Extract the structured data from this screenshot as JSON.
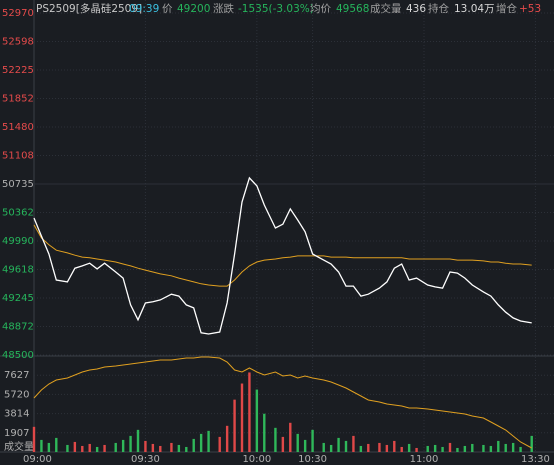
{
  "header": {
    "symbol": "PS2509[多晶硅2509]",
    "time": "09:39",
    "price_label": "价",
    "price": "49200",
    "change_label": "涨跌",
    "change": "-1535(-3.03%)",
    "avg_label": "均价",
    "avg": "49568",
    "vol_label": "成交量",
    "vol": "436",
    "oi_label": "持仓",
    "oi": "13.04万",
    "oi_chg_label": "增仓",
    "oi_chg": "+53"
  },
  "chart_data": {
    "type": "line",
    "x": [
      0,
      2,
      4,
      6,
      9,
      11,
      13,
      15,
      17,
      19,
      22,
      24,
      26,
      28,
      30,
      32,
      34,
      37,
      39,
      41,
      43,
      45,
      47,
      50,
      52,
      54,
      56,
      58,
      60,
      62,
      65,
      67,
      69,
      71,
      73,
      75,
      78,
      80,
      82,
      84,
      86,
      88,
      90,
      93,
      95,
      97,
      99,
      101,
      103,
      106,
      108,
      110,
      112,
      114,
      116,
      118,
      121,
      123,
      125,
      127,
      129,
      131,
      134
    ],
    "xlim": [
      0,
      140
    ],
    "xticks": [
      {
        "value": 0,
        "label": "09:00"
      },
      {
        "value": 30,
        "label": "09:30"
      },
      {
        "value": 60,
        "label": "10:00"
      },
      {
        "value": 75,
        "label": "10:30"
      },
      {
        "value": 105,
        "label": "11:00"
      },
      {
        "value": 135,
        "label": "13:30"
      }
    ],
    "ylim": [
      48500,
      52970
    ],
    "yticks": [
      48500,
      48872,
      49245,
      49618,
      49990,
      50362,
      50735,
      51108,
      51480,
      51852,
      52225,
      52598,
      52970
    ],
    "series": [
      {
        "color": "#ffffff",
        "values": [
          50290,
          50055,
          49820,
          49480,
          49455,
          49635,
          49665,
          49700,
          49625,
          49700,
          49585,
          49505,
          49155,
          48960,
          49180,
          49195,
          49220,
          49295,
          49270,
          49155,
          49115,
          48790,
          48775,
          48800,
          49180,
          49820,
          50500,
          50815,
          50710,
          50460,
          50160,
          50210,
          50410,
          50265,
          50110,
          49820,
          49740,
          49690,
          49585,
          49400,
          49400,
          49270,
          49295,
          49375,
          49455,
          49635,
          49690,
          49480,
          49505,
          49415,
          49390,
          49375,
          49585,
          49570,
          49505,
          49415,
          49325,
          49270,
          49155,
          49060,
          48985,
          48945,
          48920
        ]
      },
      {
        "color": "#e0a020",
        "values": [
          50200,
          50030,
          49940,
          49870,
          49835,
          49805,
          49780,
          49770,
          49755,
          49740,
          49715,
          49690,
          49665,
          49635,
          49610,
          49585,
          49560,
          49535,
          49505,
          49480,
          49455,
          49430,
          49415,
          49400,
          49400,
          49480,
          49585,
          49665,
          49715,
          49740,
          49755,
          49770,
          49780,
          49795,
          49795,
          49795,
          49795,
          49780,
          49780,
          49780,
          49770,
          49770,
          49770,
          49770,
          49770,
          49770,
          49770,
          49755,
          49755,
          49755,
          49755,
          49755,
          49755,
          49740,
          49740,
          49740,
          49730,
          49715,
          49715,
          49700,
          49690,
          49690,
          49675
        ]
      }
    ],
    "volume": {
      "label": "成交量",
      "ylim": [
        0,
        9534
      ],
      "yticks": [
        1907,
        3814,
        5720,
        7627
      ],
      "up_color": "#e04848",
      "down_color": "#2fb85a",
      "values": [
        2500,
        1200,
        900,
        1400,
        700,
        1000,
        600,
        800,
        500,
        700,
        900,
        1200,
        1600,
        2200,
        1100,
        800,
        600,
        900,
        700,
        500,
        1300,
        1800,
        2100,
        1500,
        2600,
        5200,
        6800,
        7900,
        6200,
        3800,
        2400,
        1500,
        2900,
        1800,
        1200,
        2200,
        900,
        700,
        1400,
        1100,
        1600,
        600,
        800,
        900,
        700,
        1100,
        500,
        800,
        400,
        600,
        700,
        500,
        900,
        400,
        600,
        800,
        700,
        600,
        1100,
        800,
        900,
        500,
        1600
      ]
    },
    "open_interest": {
      "color": "#e0a020",
      "ylim": [
        130000,
        132400
      ],
      "values": [
        131350,
        131550,
        131700,
        131800,
        131850,
        131925,
        132000,
        132050,
        132075,
        132125,
        132150,
        132175,
        132200,
        132225,
        132250,
        132275,
        132300,
        132300,
        132325,
        132350,
        132350,
        132375,
        132375,
        132350,
        132250,
        132050,
        132000,
        132100,
        132000,
        131925,
        132000,
        131900,
        131925,
        131850,
        131900,
        131850,
        131800,
        131750,
        131675,
        131600,
        131500,
        131400,
        131300,
        131250,
        131200,
        131175,
        131150,
        131100,
        131100,
        131075,
        131050,
        131025,
        131000,
        130975,
        130950,
        130900,
        130850,
        130750,
        130650,
        130550,
        130400,
        130250,
        130100
      ]
    },
    "up_color": "#e54b4b",
    "down_color": "#26b55c",
    "flat_color": "#b0b0b0",
    "grid": true
  }
}
